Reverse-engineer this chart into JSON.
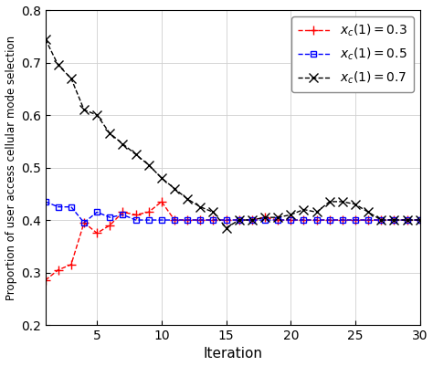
{
  "title": "",
  "xlabel": "Iteration",
  "ylabel": "Proportion of user access cellular mode selection",
  "xlim": [
    1,
    30
  ],
  "ylim": [
    0.2,
    0.8
  ],
  "yticks": [
    0.2,
    0.3,
    0.4,
    0.5,
    0.6,
    0.7,
    0.8
  ],
  "xticks": [
    5,
    10,
    15,
    20,
    25,
    30
  ],
  "series": [
    {
      "label": "x_c_03",
      "color": "#ff0000",
      "linestyle": "--",
      "marker": "+",
      "markersize": 7,
      "linewidth": 1.0,
      "x": [
        1,
        2,
        3,
        4,
        5,
        6,
        7,
        8,
        9,
        10,
        11,
        12,
        13,
        14,
        15,
        16,
        17,
        18,
        19,
        20,
        21,
        22,
        23,
        24,
        25,
        26,
        27,
        28,
        29,
        30
      ],
      "y": [
        0.285,
        0.305,
        0.315,
        0.395,
        0.375,
        0.39,
        0.415,
        0.41,
        0.415,
        0.435,
        0.4,
        0.4,
        0.4,
        0.4,
        0.4,
        0.4,
        0.4,
        0.405,
        0.4,
        0.4,
        0.4,
        0.4,
        0.4,
        0.4,
        0.4,
        0.4,
        0.4,
        0.4,
        0.4,
        0.4
      ]
    },
    {
      "label": "x_c_05",
      "color": "#0000ff",
      "linestyle": "--",
      "marker": "s",
      "markersize": 5,
      "linewidth": 1.0,
      "x": [
        1,
        2,
        3,
        4,
        5,
        6,
        7,
        8,
        9,
        10,
        11,
        12,
        13,
        14,
        15,
        16,
        17,
        18,
        19,
        20,
        21,
        22,
        23,
        24,
        25,
        26,
        27,
        28,
        29,
        30
      ],
      "y": [
        0.435,
        0.425,
        0.425,
        0.395,
        0.415,
        0.405,
        0.41,
        0.4,
        0.4,
        0.4,
        0.4,
        0.4,
        0.4,
        0.4,
        0.4,
        0.4,
        0.4,
        0.4,
        0.4,
        0.4,
        0.4,
        0.4,
        0.4,
        0.4,
        0.4,
        0.4,
        0.4,
        0.4,
        0.4,
        0.4
      ]
    },
    {
      "label": "x_c_07",
      "color": "#000000",
      "linestyle": "--",
      "marker": "x",
      "markersize": 7,
      "linewidth": 1.0,
      "x": [
        1,
        2,
        3,
        4,
        5,
        6,
        7,
        8,
        9,
        10,
        11,
        12,
        13,
        14,
        15,
        16,
        17,
        18,
        19,
        20,
        21,
        22,
        23,
        24,
        25,
        26,
        27,
        28,
        29,
        30
      ],
      "y": [
        0.745,
        0.695,
        0.67,
        0.61,
        0.6,
        0.565,
        0.545,
        0.525,
        0.505,
        0.48,
        0.46,
        0.44,
        0.425,
        0.415,
        0.385,
        0.4,
        0.4,
        0.405,
        0.405,
        0.41,
        0.42,
        0.415,
        0.435,
        0.435,
        0.43,
        0.415,
        0.4,
        0.4,
        0.4,
        0.4
      ]
    }
  ],
  "legend_labels": [
    "$x_c(1)=0.3$",
    "$x_c(1)=0.5$",
    "$x_c(1)=0.7$"
  ],
  "background_color": "#ffffff",
  "grid_color": "#d0d0d0",
  "tick_fontsize": 10,
  "label_fontsize": 11,
  "legend_fontsize": 10
}
